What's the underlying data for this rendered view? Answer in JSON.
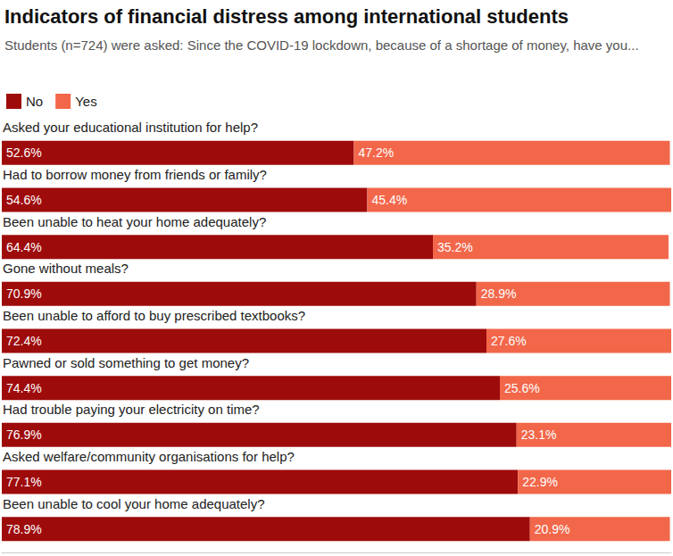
{
  "chart_data": {
    "type": "bar",
    "title": "Indicators of financial distress among international students",
    "subtitle": "Students (n=724) were asked: Since the COVID-19 lockdown, because of a shortage of money, have you...",
    "orientation": "horizontal",
    "stacked": true,
    "data_labels": true,
    "grid": false,
    "tick_labels": false,
    "legend": "top-left",
    "xlim": [
      0,
      100
    ],
    "categories": [
      "Asked your educational institution for help?",
      "Had to borrow money from friends or family?",
      "Been unable to heat your home adequately?",
      "Gone without meals?",
      "Been unable to afford to buy prescribed textbooks?",
      "Pawned or sold something to get money?",
      "Had trouble paying your electricity on time?",
      "Asked welfare/community organisations for help?",
      "Been unable to cool your home adequately?"
    ],
    "series": [
      {
        "name": "No",
        "color": "#9e0b0b",
        "values": [
          52.6,
          54.6,
          64.4,
          70.9,
          72.4,
          74.4,
          76.9,
          77.1,
          78.9
        ],
        "value_labels": [
          "52.6%",
          "54.6%",
          "64.4%",
          "70.9%",
          "72.4%",
          "74.4%",
          "76.9%",
          "77.1%",
          "78.9%"
        ]
      },
      {
        "name": "Yes",
        "color": "#f2674a",
        "values": [
          47.2,
          45.4,
          35.2,
          28.9,
          27.6,
          25.6,
          23.1,
          22.9,
          20.9
        ],
        "value_labels": [
          "47.2%",
          "45.4%",
          "35.2%",
          "28.9%",
          "27.6%",
          "25.6%",
          "23.1%",
          "22.9%",
          "20.9%"
        ]
      }
    ]
  }
}
